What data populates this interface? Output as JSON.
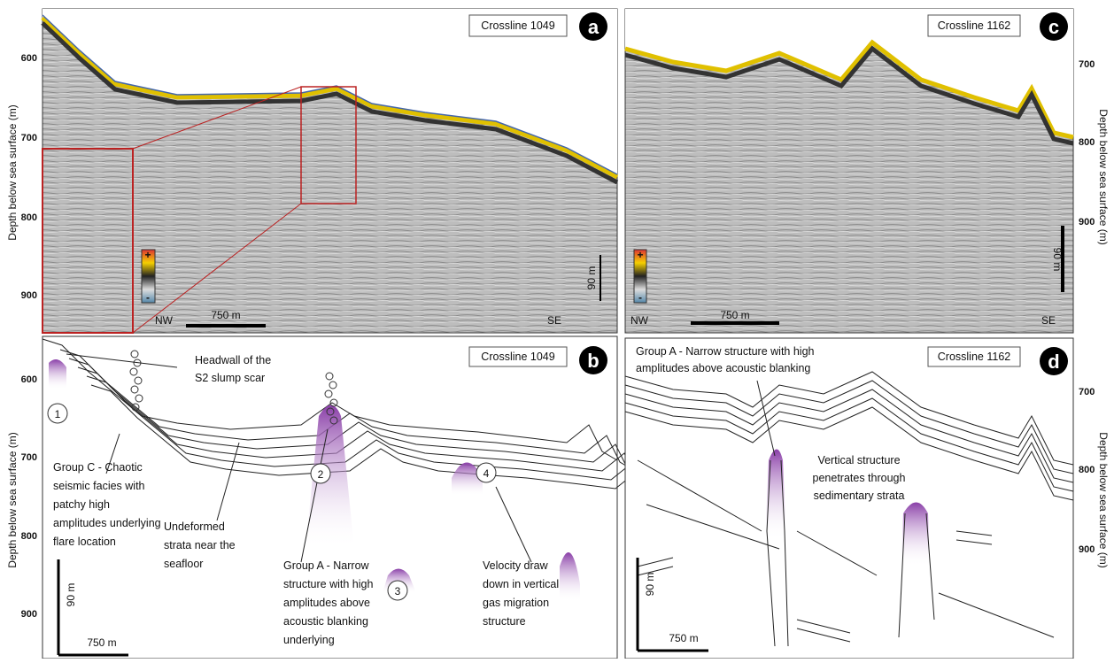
{
  "panels": [
    {
      "label": "a",
      "title": "Crossline 1049",
      "axis_label": "Depth below sea surface (m)",
      "ticks": [
        600,
        700,
        800,
        900
      ],
      "left": "NW",
      "right": "SE",
      "scale_h": "750 m",
      "scale_v": "90 m",
      "color_plus": "+",
      "color_minus": "-"
    },
    {
      "label": "b",
      "title": "Crossline 1049",
      "axis_label": "Depth below sea surface (m)",
      "ticks": [
        600,
        700,
        800,
        900
      ],
      "scale_h": "750 m",
      "scale_v": "90 m",
      "markers": [
        "1",
        "2",
        "3",
        "4"
      ],
      "annotations": [
        [
          "Headwall of the",
          "S2 slump scar"
        ],
        [
          "Group C - Chaotic",
          "seismic facies with",
          "patchy high",
          "amplitudes underlying",
          "flare location"
        ],
        [
          "Undeformed",
          "strata near the",
          "seafloor"
        ],
        [
          "Group A - Narrow",
          "structure with high",
          "amplitudes above",
          "acoustic blanking",
          "underlying"
        ],
        [
          "Velocity draw",
          "down in vertical",
          "gas migration",
          "structure"
        ]
      ]
    },
    {
      "label": "c",
      "title": "Crossline 1162",
      "axis_label": "Depth below sea surface (m)",
      "ticks": [
        700,
        800,
        900
      ],
      "left": "NW",
      "right": "SE",
      "scale_h": "750 m",
      "scale_v": "90 m",
      "color_plus": "+",
      "color_minus": "-"
    },
    {
      "label": "d",
      "title": "Crossline 1162",
      "axis_label": "Depth below sea surface (m)",
      "ticks": [
        700,
        800,
        900
      ],
      "scale_h": "750 m",
      "scale_v": "90 m",
      "annotations": [
        [
          "Group A - Narrow structure with high",
          "amplitudes above acoustic blanking"
        ],
        [
          "Vertical structure",
          "penetrates through",
          "sedimentary strata"
        ]
      ]
    }
  ]
}
